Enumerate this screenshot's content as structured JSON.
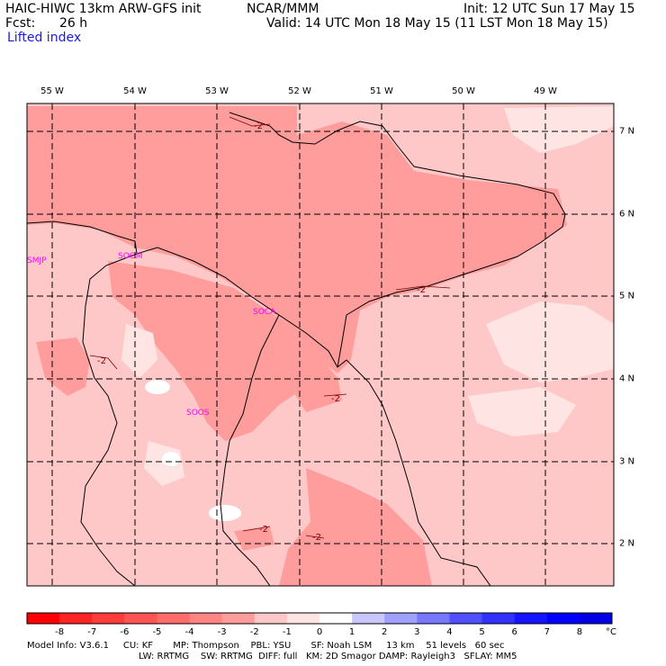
{
  "header": {
    "title_left": "HAIC-HIWC 13km ARW-GFS init",
    "org": "NCAR/MMM",
    "init": "Init: 12 UTC Sun 17 May 15",
    "fcst_label": "Fcst:",
    "fcst_value": "26 h",
    "valid": "Valid: 14 UTC Mon 18 May 15 (11 LST Mon 18 May 15)",
    "field": "Lifted index"
  },
  "map": {
    "lon_labels": [
      "55 W",
      "54 W",
      "53 W",
      "52 W",
      "51 W",
      "50 W",
      "49 W"
    ],
    "lat_labels": [
      "7 N",
      "6 N",
      "5 N",
      "4 N",
      "3 N",
      "2 N"
    ],
    "stations": [
      "SMJP",
      "SOGM",
      "SOCA",
      "SOOS"
    ],
    "contour_label": "-2",
    "colors": {
      "base": "#ffc8c8",
      "mid": "#ff9c9c",
      "pale": "#ffe4e4",
      "white": "#ffffff",
      "coast": "#000000",
      "station": "#ff00ff"
    }
  },
  "colorbar": {
    "labels": [
      "-8",
      "-7",
      "-6",
      "-5",
      "-4",
      "-3",
      "-2",
      "-1",
      "0",
      "1",
      "2",
      "3",
      "4",
      "5",
      "6",
      "7",
      "8"
    ],
    "unit": "°C",
    "colors": [
      "#ff0000",
      "#ff2424",
      "#ff3c3c",
      "#ff5454",
      "#ff6c6c",
      "#ff8484",
      "#ff9c9c",
      "#ffc8c8",
      "#ffe4e4",
      "#ffffff",
      "#c8c8ff",
      "#a0a0ff",
      "#7878ff",
      "#5050ff",
      "#3232ff",
      "#1414ff",
      "#0000ff",
      "#0000e6"
    ]
  },
  "footer": {
    "line1": "Model Info: V3.6.1     CU: KF       MP: Thompson    PBL: YSU       SF: Noah LSM     13 km    51 levels   60 sec",
    "line2": "LW: RRTMG    SW: RRTMG  DIFF: full   KM: 2D Smagor DAMP: Rayleigh3   SFLAY: MM5"
  }
}
